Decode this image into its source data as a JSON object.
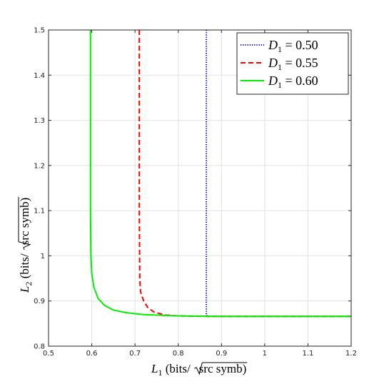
{
  "chart_data": {
    "type": "line",
    "xlabel": "L1 (bits/√src symb)",
    "ylabel": "L2 (bits/√src symb)",
    "xlim": [
      0.5,
      1.2
    ],
    "ylim": [
      0.8,
      1.5
    ],
    "grid": true,
    "legend_position": "top-right",
    "x_ticks": [
      0.5,
      0.6,
      0.7,
      0.8,
      0.9,
      1,
      1.1,
      1.2
    ],
    "x_tick_labels": [
      "0.5",
      "0.6",
      "0.7",
      "0.8",
      "0.9",
      "1",
      "1.1",
      "1.2"
    ],
    "y_ticks": [
      0.8,
      0.9,
      1,
      1.1,
      1.2,
      1.3,
      1.4,
      1.5
    ],
    "y_tick_labels": [
      "0.8",
      "0.9",
      "1",
      "1.1",
      "1.2",
      "1.3",
      "1.4",
      "1.5"
    ],
    "series": [
      {
        "name": "D1 = 0.50",
        "color": "#0000cc",
        "style": "dotted",
        "x": [
          0.865,
          0.865,
          0.865,
          0.87,
          1.0,
          1.2
        ],
        "y": [
          1.5,
          1.0,
          0.868,
          0.866,
          0.866,
          0.866
        ]
      },
      {
        "name": "D1 = 0.55",
        "color": "#ff0000",
        "style": "dashed",
        "x": [
          0.71,
          0.71,
          0.711,
          0.713,
          0.72,
          0.73,
          0.745,
          0.77,
          0.8,
          0.865,
          1.0,
          1.2
        ],
        "y": [
          1.5,
          1.1,
          0.95,
          0.92,
          0.9,
          0.885,
          0.875,
          0.869,
          0.867,
          0.866,
          0.866,
          0.866
        ]
      },
      {
        "name": "D1 = 0.60",
        "color": "#00ee00",
        "style": "solid",
        "x": [
          0.597,
          0.597,
          0.598,
          0.6,
          0.605,
          0.615,
          0.63,
          0.65,
          0.68,
          0.72,
          0.8,
          0.9,
          1.0,
          1.2
        ],
        "y": [
          1.5,
          1.1,
          1.0,
          0.96,
          0.93,
          0.905,
          0.89,
          0.88,
          0.874,
          0.87,
          0.867,
          0.866,
          0.866,
          0.866
        ]
      }
    ]
  },
  "legend": {
    "entries": [
      {
        "symbol": "D",
        "subscript": "1",
        "value": " = 0.50"
      },
      {
        "symbol": "D",
        "subscript": "1",
        "value": " = 0.55"
      },
      {
        "symbol": "D",
        "subscript": "1",
        "value": " = 0.60"
      }
    ]
  },
  "axes": {
    "x_title": {
      "symbol": "L",
      "subscript": "1",
      "text_before_sqrt": "  (bits/",
      "sqrt_text": "src symb",
      "text_after": ")"
    },
    "y_title": {
      "symbol": "L",
      "subscript": "2",
      "text_before_sqrt": "  (bits/",
      "sqrt_text": "src symb",
      "text_after": ")"
    }
  }
}
